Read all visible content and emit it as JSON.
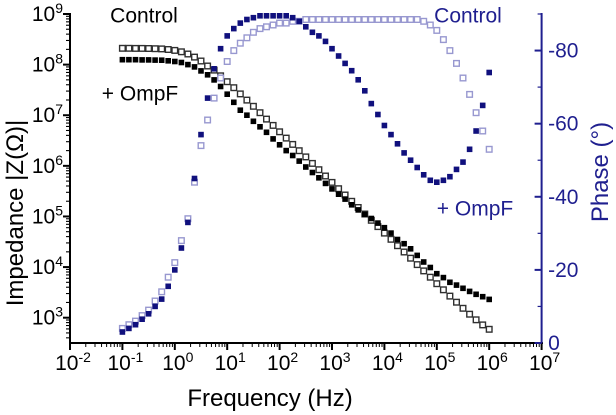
{
  "figure": {
    "background": "#ffffff",
    "black_color": "#000000",
    "navy_color": "#1f1f8f",
    "open_black_marker_color": "#303030",
    "filled_black_marker_color": "#000000",
    "open_navy_marker_color": "#9898d0",
    "filled_navy_marker_color": "#10107d"
  },
  "chart_data": {
    "type": "scatter",
    "title": "",
    "xlabel": "Frequency (Hz)",
    "ylabel_left": "Impedance |Z(Ω)|",
    "ylabel_right": "Phase (°)",
    "x_scale": "log",
    "x_range_exponents": [
      -2,
      7
    ],
    "y_left_scale": "log",
    "y_left_range_exponents": [
      2.5,
      9
    ],
    "y_right_range": [
      0,
      -90
    ],
    "grid": false,
    "x_tick_exponents": [
      -2,
      -1,
      0,
      1,
      2,
      3,
      4,
      5,
      6,
      7
    ],
    "y_left_tick_exponents": [
      9,
      8,
      7,
      6,
      5,
      4,
      3
    ],
    "y_right_ticks": [
      -80,
      -60,
      -40,
      -20,
      0
    ],
    "log_f": [
      -1,
      -0.875,
      -0.75,
      -0.625,
      -0.5,
      -0.375,
      -0.25,
      -0.125,
      0,
      0.125,
      0.25,
      0.375,
      0.5,
      0.625,
      0.75,
      0.875,
      1,
      1.125,
      1.25,
      1.375,
      1.5,
      1.625,
      1.75,
      1.875,
      2,
      2.125,
      2.25,
      2.375,
      2.5,
      2.625,
      2.75,
      2.875,
      3,
      3.125,
      3.25,
      3.375,
      3.5,
      3.625,
      3.75,
      3.875,
      4,
      4.125,
      4.25,
      4.375,
      4.5,
      4.625,
      4.75,
      4.875,
      5,
      5.125,
      5.25,
      5.375,
      5.5,
      5.625,
      5.75,
      5.875,
      6
    ],
    "series": [
      {
        "name": "Control impedance",
        "axis": "left",
        "marker": "open-square",
        "color": "#303030",
        "values": [
          210000000.0,
          210000000.0,
          209000000.0,
          209000000.0,
          208000000.0,
          206000000.0,
          204000000.0,
          199000000.0,
          191000000.0,
          179000000.0,
          162000000.0,
          141000000.0,
          118000000.0,
          94000000.0,
          78000000.0,
          60000000.0,
          46000000.0,
          35000000.0,
          26400000.0,
          19900000.0,
          15000000.0,
          11200000.0,
          8400000.0,
          6300000.0,
          4700000.0,
          3540000.0,
          2650000.0,
          1990000.0,
          1500000.0,
          1120000.0,
          840000.0,
          630000.0,
          470000.0,
          354000.0,
          265000.0,
          199000.0,
          150000.0,
          112000.0,
          84000.0,
          63000.0,
          47000.0,
          35400.0,
          26500.0,
          19900.0,
          15000.0,
          11200.0,
          8400.0,
          6300.0,
          4700.0,
          3550.0,
          2670.0,
          2020.0,
          1530.0,
          1170.0,
          910.0,
          720.0,
          590.0
        ]
      },
      {
        "name": "+ OmpF impedance",
        "axis": "left",
        "marker": "filled-square",
        "color": "#000000",
        "values": [
          125000000.0,
          125000000.0,
          125000000.0,
          124000000.0,
          124000000.0,
          123000000.0,
          122000000.0,
          119000000.0,
          115000000.0,
          110000000.0,
          100000000.0,
          90000000.0,
          75000000.0,
          63000000.0,
          50000000.0,
          37000000.0,
          26000000.0,
          18000000.0,
          12600000.0,
          10000000.0,
          7600000.0,
          5900000.0,
          4600000.0,
          3400000.0,
          2600000.0,
          2000000.0,
          1600000.0,
          1240000.0,
          950000.0,
          740000.0,
          580000.0,
          450000.0,
          350000.0,
          275000.0,
          220000.0,
          170000.0,
          135000.0,
          110000.0,
          91000.0,
          74000.0,
          60000.0,
          47000.0,
          35000.0,
          29000.0,
          23000.0,
          17000.0,
          12600.0,
          9800.0,
          7400.0,
          6200.0,
          5000.0,
          4400.0,
          3800.0,
          3300.0,
          2900.0,
          2600.0,
          2300.0
        ]
      },
      {
        "name": "Control phase",
        "axis": "right",
        "marker": "open-square",
        "color": "#9898d0",
        "values": [
          -4,
          -5,
          -6,
          -7.5,
          -9,
          -11.5,
          -14,
          -18,
          -22,
          -28,
          -34,
          -44,
          -54,
          -61,
          -67,
          -72.5,
          -77,
          -80,
          -82,
          -83.5,
          -85,
          -86,
          -86.5,
          -87,
          -87.5,
          -87.5,
          -88,
          -88,
          -88.5,
          -88.5,
          -88.5,
          -88.5,
          -88.5,
          -88.5,
          -88.5,
          -88.5,
          -88.5,
          -88.5,
          -88.5,
          -88.5,
          -88.5,
          -88.5,
          -88.5,
          -88.5,
          -88.5,
          -88.5,
          -88,
          -87,
          -85.5,
          -83,
          -80,
          -76.5,
          -72.5,
          -68,
          -63,
          -58,
          -53
        ]
      },
      {
        "name": "+ OmpF phase",
        "axis": "right",
        "marker": "filled-square",
        "color": "#10107d",
        "values": [
          -3,
          -4,
          -5,
          -6.5,
          -8,
          -10,
          -12,
          -15.5,
          -20,
          -26,
          -33,
          -45,
          -57,
          -67,
          -75,
          -80.5,
          -84,
          -86,
          -87.5,
          -88.5,
          -89,
          -89.5,
          -89.5,
          -89.5,
          -89.5,
          -89.5,
          -89,
          -88,
          -86.5,
          -85,
          -84,
          -82.5,
          -80.5,
          -78.5,
          -76.5,
          -74.5,
          -72,
          -69,
          -65.5,
          -62.5,
          -59.5,
          -57,
          -54.5,
          -52,
          -50,
          -48,
          -46,
          -44.5,
          -44,
          -44.5,
          -45.5,
          -47.5,
          -49.5,
          -53,
          -58,
          -65,
          -74
        ]
      }
    ],
    "annotations": [
      {
        "id": "control-impedance-label",
        "text": "Control",
        "color": "#000000"
      },
      {
        "id": "ompf-impedance-label",
        "text": "+ OmpF",
        "color": "#000000"
      },
      {
        "id": "control-phase-label",
        "text": "Control",
        "color": "#1f1f8f"
      },
      {
        "id": "ompf-phase-label",
        "text": "+ OmpF",
        "color": "#1f1f8f"
      }
    ]
  }
}
